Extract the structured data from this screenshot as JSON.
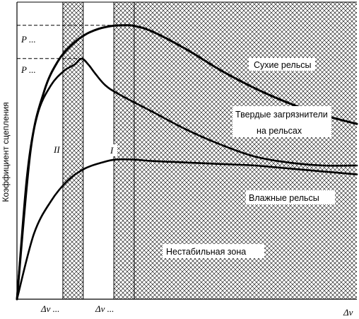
{
  "chart_data": {
    "type": "line",
    "ylabel": "Коэффициент сцепления",
    "xlabel": "Δv",
    "x_ticks": [
      "Δv ...",
      "Δv ..."
    ],
    "y_ticks": [
      "P ...",
      "P ..."
    ],
    "zones": [
      {
        "label": "II",
        "from": 0.135,
        "to": 0.195
      },
      {
        "label": "I",
        "from": 0.285,
        "to": 0.345
      },
      {
        "label": "Нестабильная зона",
        "from": 0.345,
        "to": 1.0
      }
    ],
    "xlim": [
      0,
      1
    ],
    "ylim": [
      0,
      1
    ],
    "series": [
      {
        "name": "Сухие рельсы",
        "x": [
          0,
          0.04,
          0.08,
          0.12,
          0.16,
          0.2,
          0.24,
          0.28,
          0.31,
          0.345,
          0.4,
          0.5,
          0.6,
          0.7,
          0.8,
          0.9,
          1.0
        ],
        "y": [
          0,
          0.5,
          0.7,
          0.8,
          0.855,
          0.89,
          0.91,
          0.92,
          0.922,
          0.92,
          0.9,
          0.84,
          0.77,
          0.71,
          0.66,
          0.62,
          0.59
        ]
      },
      {
        "name": "Твердые загрязнители на рельсах",
        "x": [
          0,
          0.03,
          0.06,
          0.1,
          0.14,
          0.17,
          0.19,
          0.21,
          0.23,
          0.26,
          0.3,
          0.4,
          0.5,
          0.6,
          0.7,
          0.8,
          0.9,
          1.0
        ],
        "y": [
          0,
          0.42,
          0.62,
          0.72,
          0.77,
          0.79,
          0.81,
          0.79,
          0.76,
          0.72,
          0.69,
          0.63,
          0.57,
          0.52,
          0.48,
          0.46,
          0.45,
          0.45
        ]
      },
      {
        "name": "Влажные рельсы",
        "x": [
          0,
          0.05,
          0.1,
          0.15,
          0.2,
          0.25,
          0.29,
          0.345,
          0.4,
          0.5,
          0.6,
          0.7,
          0.8,
          0.9,
          1.0
        ],
        "y": [
          0,
          0.22,
          0.33,
          0.4,
          0.44,
          0.46,
          0.47,
          0.47,
          0.465,
          0.46,
          0.455,
          0.45,
          0.44,
          0.43,
          0.42
        ]
      }
    ],
    "annotations": [
      {
        "text": "Сухие рельсы",
        "anchor": "Сухие рельсы"
      },
      {
        "text": "Твердые загрязнители",
        "anchor": "Твердые загрязнители на рельсах"
      },
      {
        "text": "на рельсах",
        "anchor": "Твердые загрязнители на рельсах"
      },
      {
        "text": "Влажные рельсы",
        "anchor": "Влажные рельсы"
      },
      {
        "text": "Нестабильная зона",
        "anchor": "zone"
      }
    ]
  }
}
